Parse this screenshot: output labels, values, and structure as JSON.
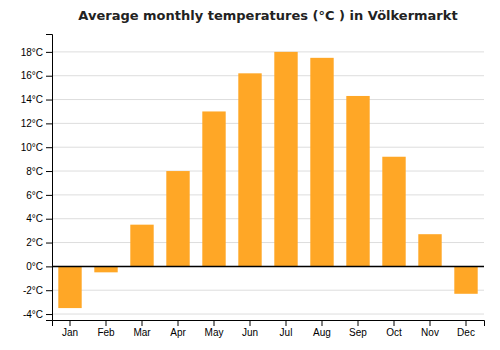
{
  "chart_data": {
    "type": "bar",
    "title": "Average monthly temperatures (°C ) in Völkermarkt",
    "categories": [
      "Jan",
      "Feb",
      "Mar",
      "Apr",
      "May",
      "Jun",
      "Jul",
      "Aug",
      "Sep",
      "Oct",
      "Nov",
      "Dec"
    ],
    "values": [
      -3.5,
      -0.5,
      3.5,
      8.0,
      13.0,
      16.2,
      18.0,
      17.5,
      14.3,
      9.2,
      2.7,
      -2.3
    ],
    "color": "#FFA726",
    "ylim": [
      -4.5,
      19.5
    ],
    "yticks": [
      {
        "value": -4,
        "label": "-4°C"
      },
      {
        "value": -2,
        "label": "-2°C"
      },
      {
        "value": 0,
        "label": "0°C"
      },
      {
        "value": 2,
        "label": "2°C"
      },
      {
        "value": 4,
        "label": "4°C"
      },
      {
        "value": 6,
        "label": "6°C"
      },
      {
        "value": 8,
        "label": "8°C"
      },
      {
        "value": 10,
        "label": "10°C"
      },
      {
        "value": 12,
        "label": "12°C"
      },
      {
        "value": 14,
        "label": "14°C"
      },
      {
        "value": 16,
        "label": "16°C"
      },
      {
        "value": 18,
        "label": "18°C"
      }
    ],
    "grid": true
  }
}
